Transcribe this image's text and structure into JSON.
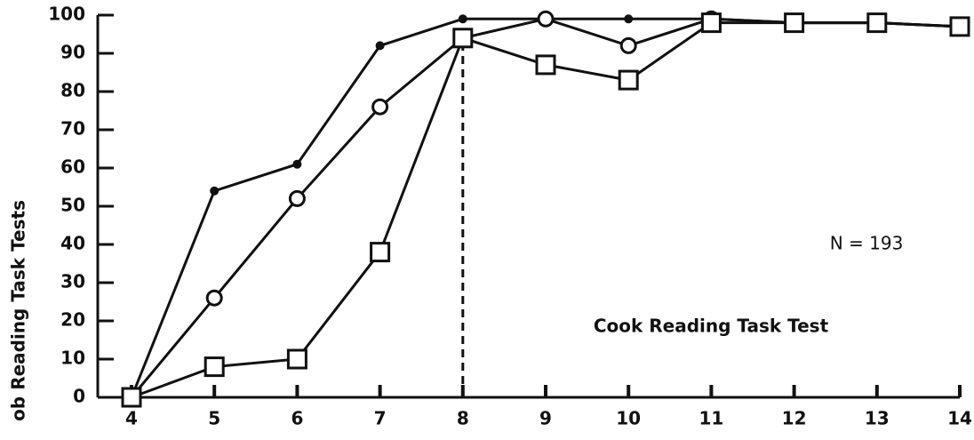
{
  "chart_data": {
    "type": "line",
    "ylabel": "ob Reading Task Tests",
    "annotations": [
      "N = 193",
      "Cook Reading Task Test"
    ],
    "x": [
      4,
      5,
      6,
      7,
      8,
      9,
      10,
      11,
      12,
      13,
      14
    ],
    "series": [
      {
        "color": "#111111",
        "marker": "dot",
        "values": [
          0,
          54,
          61,
          92,
          99,
          99,
          99,
          99,
          98,
          98,
          97
        ]
      },
      {
        "color": "#111111",
        "marker": "circle",
        "values": [
          0,
          26,
          52,
          76,
          94,
          99,
          92,
          99,
          98,
          98,
          97
        ]
      },
      {
        "color": "#111111",
        "marker": "square",
        "values": [
          0,
          8,
          10,
          38,
          94,
          87,
          83,
          98,
          98,
          98,
          97
        ]
      }
    ],
    "vline": 8,
    "xlim": [
      4,
      14
    ],
    "xticks": [
      4,
      5,
      6,
      7,
      8,
      9,
      10,
      11,
      12,
      13,
      14
    ],
    "ylim": [
      0,
      100
    ],
    "yticks": [
      0,
      10,
      20,
      30,
      40,
      50,
      60,
      70,
      80,
      90,
      100
    ],
    "grid": false
  }
}
